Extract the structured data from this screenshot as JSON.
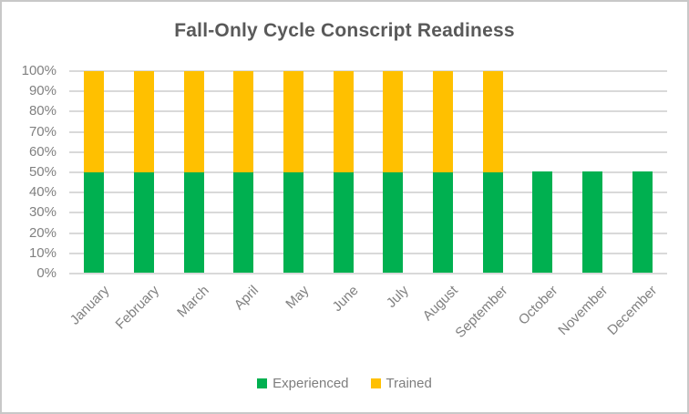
{
  "frame": {
    "background": "#FFFFFF",
    "border_color": "#C8C8C8"
  },
  "chart_data": {
    "type": "bar",
    "stacked": true,
    "title": "Fall-Only Cycle Conscript Readiness",
    "title_color": "#595959",
    "categories": [
      "January",
      "February",
      "March",
      "April",
      "May",
      "June",
      "July",
      "August",
      "September",
      "October",
      "November",
      "December"
    ],
    "series": [
      {
        "name": "Experienced",
        "color": "#00B050",
        "values": [
          50,
          50,
          50,
          50,
          50,
          50,
          50,
          50,
          50,
          50,
          50,
          50
        ]
      },
      {
        "name": "Trained",
        "color": "#FFC000",
        "values": [
          50,
          50,
          50,
          50,
          50,
          50,
          50,
          50,
          50,
          0,
          0,
          0
        ]
      }
    ],
    "xlabel": "",
    "ylabel": "",
    "ylim": [
      0,
      100
    ],
    "y_tick_labels_top_to_bottom": [
      "100%",
      "90%",
      "80%",
      "70%",
      "60%",
      "50%",
      "40%",
      "30%",
      "20%",
      "10%",
      "0%"
    ],
    "grid": true,
    "gridline_color": "#D9D9D9",
    "axis_label_color": "#808080",
    "legend_position": "bottom",
    "legend_text_color": "#7D7D7D",
    "legend_entries": [
      "Experienced",
      "Trained"
    ]
  }
}
